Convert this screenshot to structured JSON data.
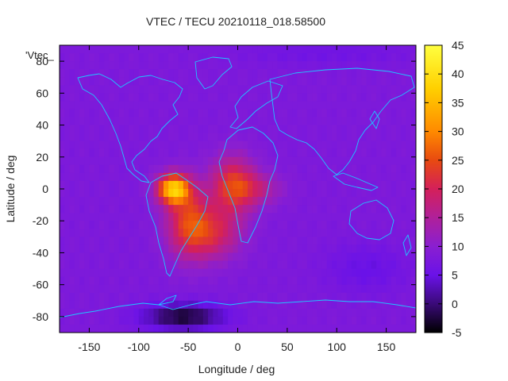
{
  "chart_data": {
    "type": "heatmap",
    "title": "VTEC / TECU 20210118_018.58500",
    "xlabel": "Longitude / deg",
    "ylabel": "Latitude / deg",
    "series_label": "'Vtec_",
    "xlim": [
      -180,
      180
    ],
    "ylim": [
      -90,
      90
    ],
    "xticks": [
      -150,
      -100,
      -50,
      0,
      50,
      100,
      150
    ],
    "xtick_labels": [
      "-150",
      "-100",
      "-50",
      "0",
      "50",
      "100",
      "150"
    ],
    "yticks": [
      -80,
      -60,
      -40,
      -20,
      0,
      20,
      40,
      60,
      80
    ],
    "ytick_labels": [
      "-80",
      "-60",
      "-40",
      "-20",
      "0",
      "20",
      "40",
      "60",
      "80"
    ],
    "colorbar": {
      "range": [
        -5,
        45
      ],
      "ticks": [
        -5,
        0,
        5,
        10,
        15,
        20,
        25,
        30,
        35,
        40,
        45
      ],
      "tick_labels": [
        "-5",
        "0",
        "5",
        "10",
        "15",
        "20",
        "25",
        "30",
        "35",
        "40",
        "45"
      ],
      "colormap": [
        "#000000",
        "#3a0a78",
        "#6a12e8",
        "#8a1fd0",
        "#b0209a",
        "#d4205a",
        "#e84a10",
        "#ff8a00",
        "#ffd000",
        "#ffff40"
      ]
    },
    "field": {
      "grid": "5x5 deg cells, values in TECU",
      "background_value": 8,
      "features": [
        {
          "name": "south-american-peak",
          "lon": -65,
          "lat": 0,
          "value": 36
        },
        {
          "name": "south-american-crest",
          "lon": -55,
          "lat": -22,
          "value": 23
        },
        {
          "name": "african-sector-crest",
          "lon": -5,
          "lat": 0,
          "value": 23
        },
        {
          "name": "southern-atlantic-crest",
          "lon": -30,
          "lat": -25,
          "value": 20
        },
        {
          "name": "antarctic-low",
          "lon": -55,
          "lat": -78,
          "value": -3
        }
      ]
    },
    "overlay": "coastlines"
  },
  "colors": {
    "coastline": "#1ec8ff",
    "frame": "#000000",
    "text": "#222222"
  }
}
